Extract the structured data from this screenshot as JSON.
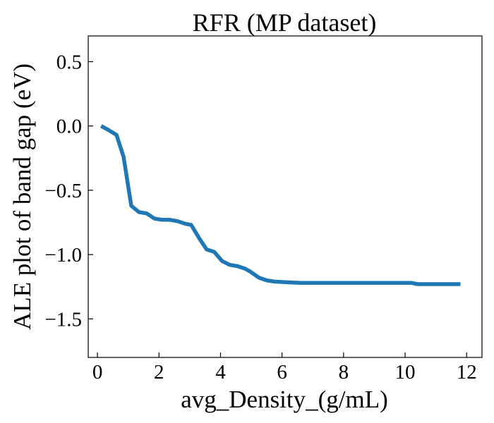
{
  "chart_data": {
    "type": "line",
    "title": "RFR (MP dataset)",
    "xlabel": "avg_Density_(g/mL)",
    "ylabel": "ALE plot of band gap (eV)",
    "xlim": [
      -0.3,
      12.5
    ],
    "ylim": [
      -1.8,
      0.7
    ],
    "xticks": [
      0,
      2,
      4,
      6,
      8,
      10,
      12
    ],
    "xtick_labels": [
      "0",
      "2",
      "4",
      "6",
      "8",
      "10",
      "12"
    ],
    "yticks": [
      0.5,
      0.0,
      -0.5,
      -1.0,
      -1.5
    ],
    "ytick_labels": [
      "0.5",
      "0.0",
      "−0.5",
      "−1.0",
      "−1.5"
    ],
    "grid": false,
    "series": [
      {
        "color": "#1f77b4",
        "x": [
          0.12,
          0.35,
          0.62,
          0.85,
          1.1,
          1.35,
          1.6,
          1.85,
          2.1,
          2.35,
          2.6,
          2.85,
          3.05,
          3.3,
          3.55,
          3.8,
          4.05,
          4.3,
          4.55,
          4.8,
          4.95,
          5.25,
          5.5,
          5.75,
          6.1,
          6.6,
          7.0,
          7.5,
          8.0,
          9.0,
          10.0,
          10.2,
          10.4,
          11.0,
          11.8
        ],
        "y": [
          0.0,
          -0.03,
          -0.07,
          -0.24,
          -0.62,
          -0.67,
          -0.68,
          -0.72,
          -0.73,
          -0.73,
          -0.74,
          -0.76,
          -0.77,
          -0.87,
          -0.96,
          -0.98,
          -1.05,
          -1.08,
          -1.09,
          -1.11,
          -1.13,
          -1.18,
          -1.2,
          -1.21,
          -1.215,
          -1.22,
          -1.22,
          -1.22,
          -1.22,
          -1.22,
          -1.22,
          -1.22,
          -1.23,
          -1.23,
          -1.23
        ]
      }
    ]
  }
}
